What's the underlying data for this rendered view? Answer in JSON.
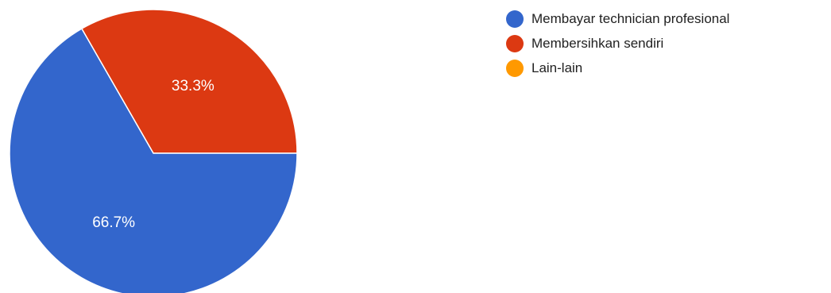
{
  "chart_data": {
    "type": "pie",
    "categories": [
      "Membayar technician profesional",
      "Membersihkan sendiri",
      "Lain-lain"
    ],
    "values": [
      66.7,
      33.3,
      0
    ],
    "data_labels": [
      "66.7%",
      "33.3%",
      ""
    ],
    "colors": [
      "#3366cc",
      "#dc3912",
      "#ff9900"
    ],
    "legend_position": "right"
  },
  "legend": {
    "items": [
      {
        "label": "Membayar technician profesional",
        "color": "#3366cc"
      },
      {
        "label": "Membersihkan sendiri",
        "color": "#dc3912"
      },
      {
        "label": "Lain-lain",
        "color": "#ff9900"
      }
    ]
  }
}
